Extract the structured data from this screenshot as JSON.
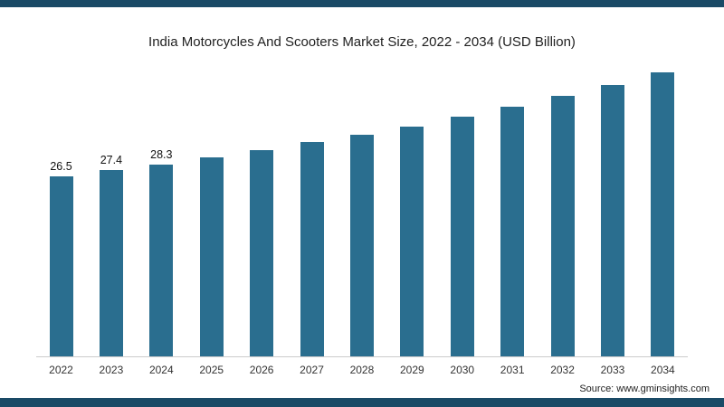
{
  "page": {
    "source_prefix": "Source: ",
    "source_url": "www.gminsights.com"
  },
  "colors": {
    "bar": "#2a6e8f",
    "frame": "#1a4a66",
    "baseline": "#cccccc",
    "title_text": "#1f1f1f"
  },
  "chart_data": {
    "type": "bar",
    "title": "India Motorcycles And Scooters Market Size, 2022 - 2034 (USD Billion)",
    "xlabel": "",
    "ylabel": "",
    "unit": "USD Billion",
    "categories": [
      "2022",
      "2023",
      "2024",
      "2025",
      "2026",
      "2027",
      "2028",
      "2029",
      "2030",
      "2031",
      "2032",
      "2033",
      "2034"
    ],
    "values": [
      26.5,
      27.4,
      28.3,
      29.3,
      30.4,
      31.6,
      32.7,
      33.9,
      35.3,
      36.8,
      38.4,
      40.0,
      41.8
    ],
    "data_labels": [
      "26.5",
      "27.4",
      "28.3",
      "",
      "",
      "",
      "",
      "",
      "",
      "",
      "",
      "",
      ""
    ],
    "ylim": [
      0,
      44
    ],
    "grid": false,
    "legend": false,
    "data_label_note": "only first three bars show value labels"
  }
}
